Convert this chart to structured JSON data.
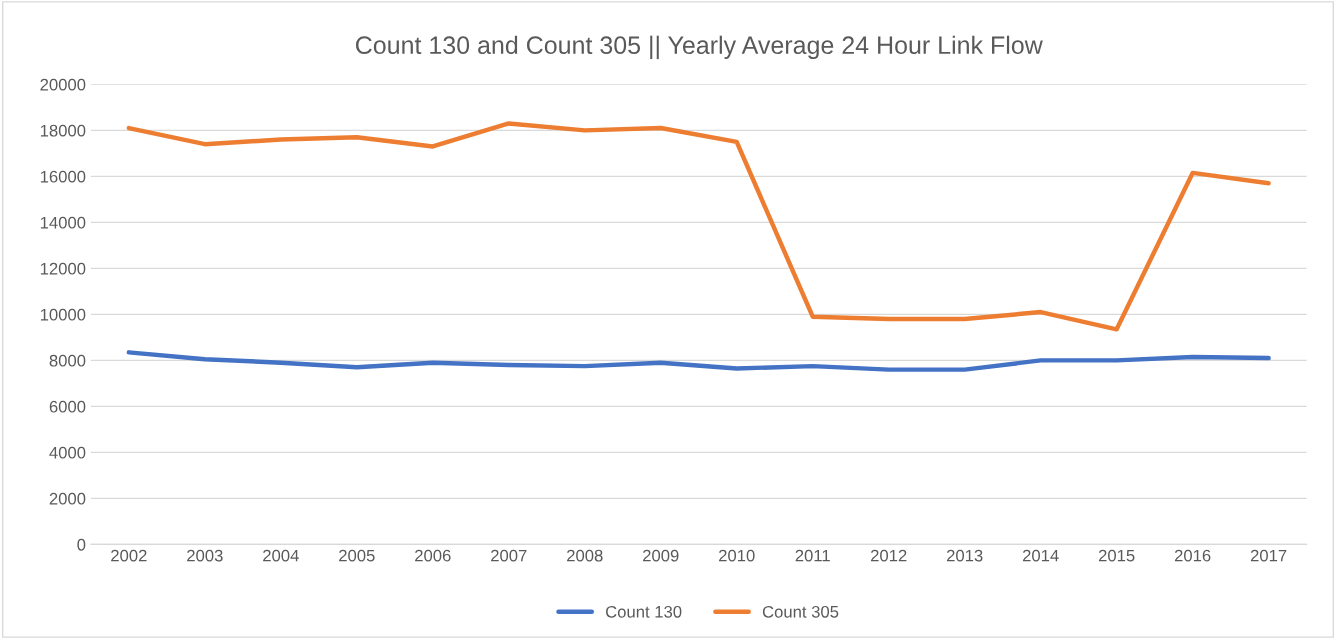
{
  "chart_data": {
    "type": "line",
    "title": "Count 130 and Count 305 || Yearly Average 24 Hour Link Flow",
    "categories": [
      "2002",
      "2003",
      "2004",
      "2005",
      "2006",
      "2007",
      "2008",
      "2009",
      "2010",
      "2011",
      "2012",
      "2013",
      "2014",
      "2015",
      "2016",
      "2017"
    ],
    "series": [
      {
        "name": "Count 130",
        "color": "#4472c4",
        "values": [
          8350,
          8050,
          7900,
          7700,
          7900,
          7800,
          7750,
          7900,
          7650,
          7750,
          7600,
          7600,
          8000,
          8000,
          8150,
          8100
        ]
      },
      {
        "name": "Count 305",
        "color": "#ed7d31",
        "values": [
          18100,
          17400,
          17600,
          17700,
          17300,
          18300,
          18000,
          18100,
          17500,
          9900,
          9800,
          9800,
          10100,
          9350,
          16150,
          15700
        ]
      }
    ],
    "ylim": [
      0,
      20000
    ],
    "yticks": [
      0,
      2000,
      4000,
      6000,
      8000,
      10000,
      12000,
      14000,
      16000,
      18000,
      20000
    ],
    "grid": "y",
    "legend": "bottom",
    "marker": "none",
    "line_style": "solid"
  }
}
